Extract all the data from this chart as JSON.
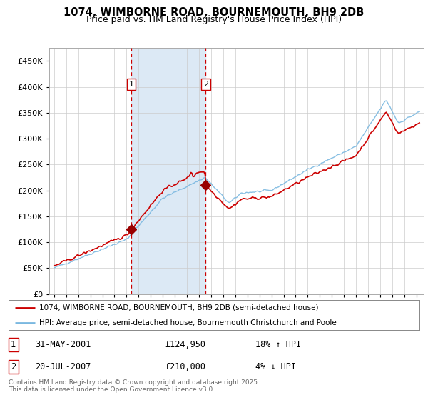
{
  "title": "1074, WIMBORNE ROAD, BOURNEMOUTH, BH9 2DB",
  "subtitle": "Price paid vs. HM Land Registry's House Price Index (HPI)",
  "sale1_date": "31-MAY-2001",
  "sale1_price": 124950,
  "sale2_date": "20-JUL-2007",
  "sale2_price": 210000,
  "sale1_pct": "18% ↑ HPI",
  "sale2_pct": "4% ↓ HPI",
  "legend_line1": "1074, WIMBORNE ROAD, BOURNEMOUTH, BH9 2DB (semi-detached house)",
  "legend_line2": "HPI: Average price, semi-detached house, Bournemouth Christchurch and Poole",
  "footer": "Contains HM Land Registry data © Crown copyright and database right 2025.\nThis data is licensed under the Open Government Licence v3.0.",
  "hpi_color": "#7ab8e0",
  "price_color": "#cc0000",
  "shade_color": "#dce9f5",
  "annotation_color": "#cc0000",
  "ylim": [
    0,
    475000
  ],
  "yticks": [
    0,
    50000,
    100000,
    150000,
    200000,
    250000,
    300000,
    350000,
    400000,
    450000
  ],
  "background_color": "#ffffff",
  "sale1_x": 2001.4,
  "sale2_x": 2007.55
}
